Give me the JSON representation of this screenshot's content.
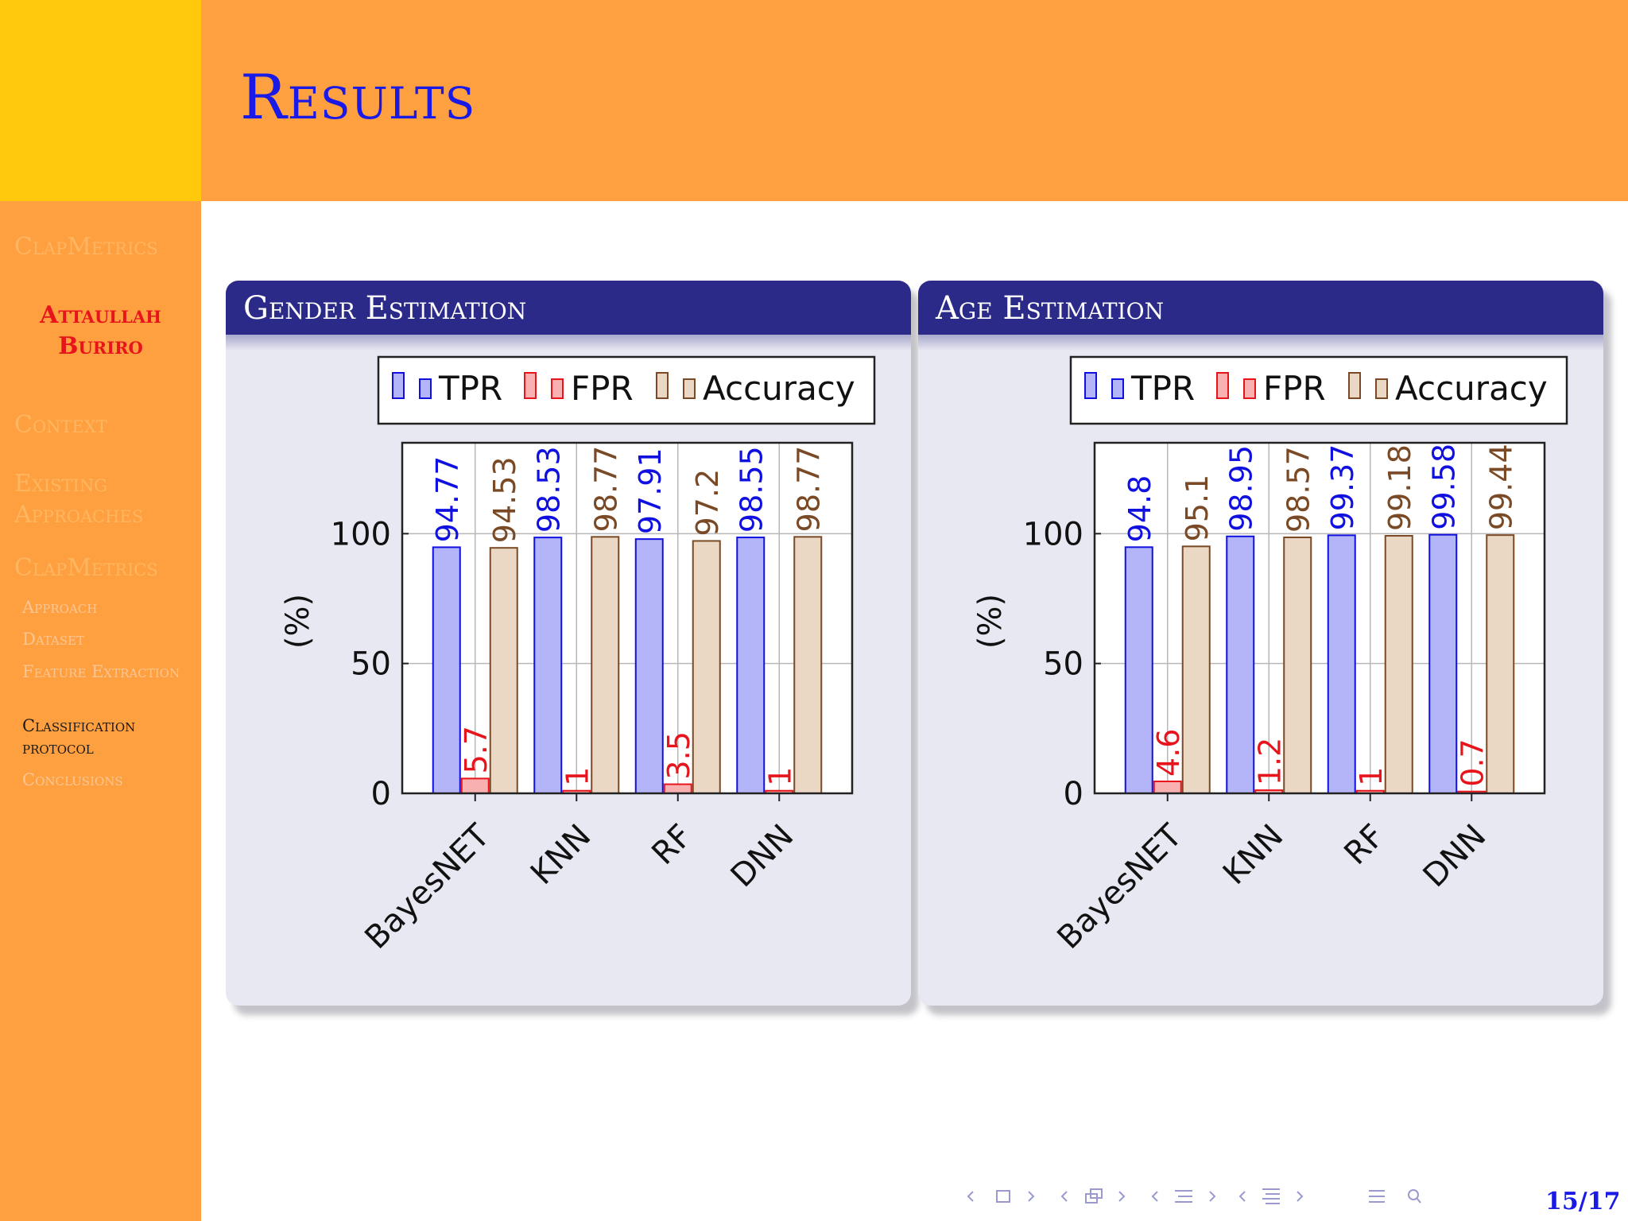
{
  "frame": {
    "title": "Results"
  },
  "sidebar": {
    "title": "ClapMetrics",
    "author": [
      "Attaullah",
      "Buriro"
    ],
    "sections": [
      {
        "label": "Context"
      },
      {
        "label": "Existing Approaches"
      },
      {
        "label": "ClapMetrics",
        "subsections": [
          "Approach",
          "Dataset",
          "Feature Extraction",
          "Classification protocol",
          "Conclusions"
        ]
      }
    ],
    "active_subsection": "Classification protocol"
  },
  "colors": {
    "tpr": "#1010e0",
    "fpr": "#e8141b",
    "accuracy": "#7a4a26",
    "block_header": "#2b2a88",
    "block_body": "#e8e8f2"
  },
  "chart_data": [
    {
      "type": "bar",
      "block_title": "Gender Estimation",
      "categories": [
        "BayesNET",
        "KNN",
        "RF",
        "DNN"
      ],
      "ylabel": "(%)",
      "ylim": [
        0,
        135
      ],
      "yticks": [
        0,
        50,
        100
      ],
      "grid": true,
      "legend_position": "top",
      "series": [
        {
          "name": "TPR",
          "values": [
            94.77,
            98.53,
            97.91,
            98.55
          ],
          "labels": [
            "94.77",
            "98.53",
            "97.91",
            "98.55"
          ]
        },
        {
          "name": "FPR",
          "values": [
            5.7,
            1,
            3.5,
            1
          ],
          "labels": [
            "5.7",
            "1",
            "3.5",
            "1"
          ]
        },
        {
          "name": "Accuracy",
          "values": [
            94.53,
            98.77,
            97.2,
            98.77
          ],
          "labels": [
            "94.53",
            "98.77",
            "97.2",
            "98.77"
          ]
        }
      ]
    },
    {
      "type": "bar",
      "block_title": "Age Estimation",
      "categories": [
        "BayesNET",
        "KNN",
        "RF",
        "DNN"
      ],
      "ylabel": "(%)",
      "ylim": [
        0,
        135
      ],
      "yticks": [
        0,
        50,
        100
      ],
      "grid": true,
      "legend_position": "top",
      "series": [
        {
          "name": "TPR",
          "values": [
            94.8,
            98.95,
            99.37,
            99.58
          ],
          "labels": [
            "94.8",
            "98.95",
            "99.37",
            "99.58"
          ]
        },
        {
          "name": "FPR",
          "values": [
            4.6,
            1.2,
            1,
            0.7
          ],
          "labels": [
            "4.6",
            "1.2",
            "1",
            "0.7"
          ]
        },
        {
          "name": "Accuracy",
          "values": [
            95.1,
            98.57,
            99.18,
            99.44
          ],
          "labels": [
            "95.1",
            "98.57",
            "99.18",
            "99.44"
          ]
        }
      ]
    }
  ],
  "navigation": {
    "icons": [
      "nav-frame-icon",
      "nav-subsection-icon",
      "nav-section-icon",
      "nav-document-icon",
      "nav-menu-icon",
      "nav-search-icon"
    ]
  },
  "page": {
    "number": "15/17"
  }
}
